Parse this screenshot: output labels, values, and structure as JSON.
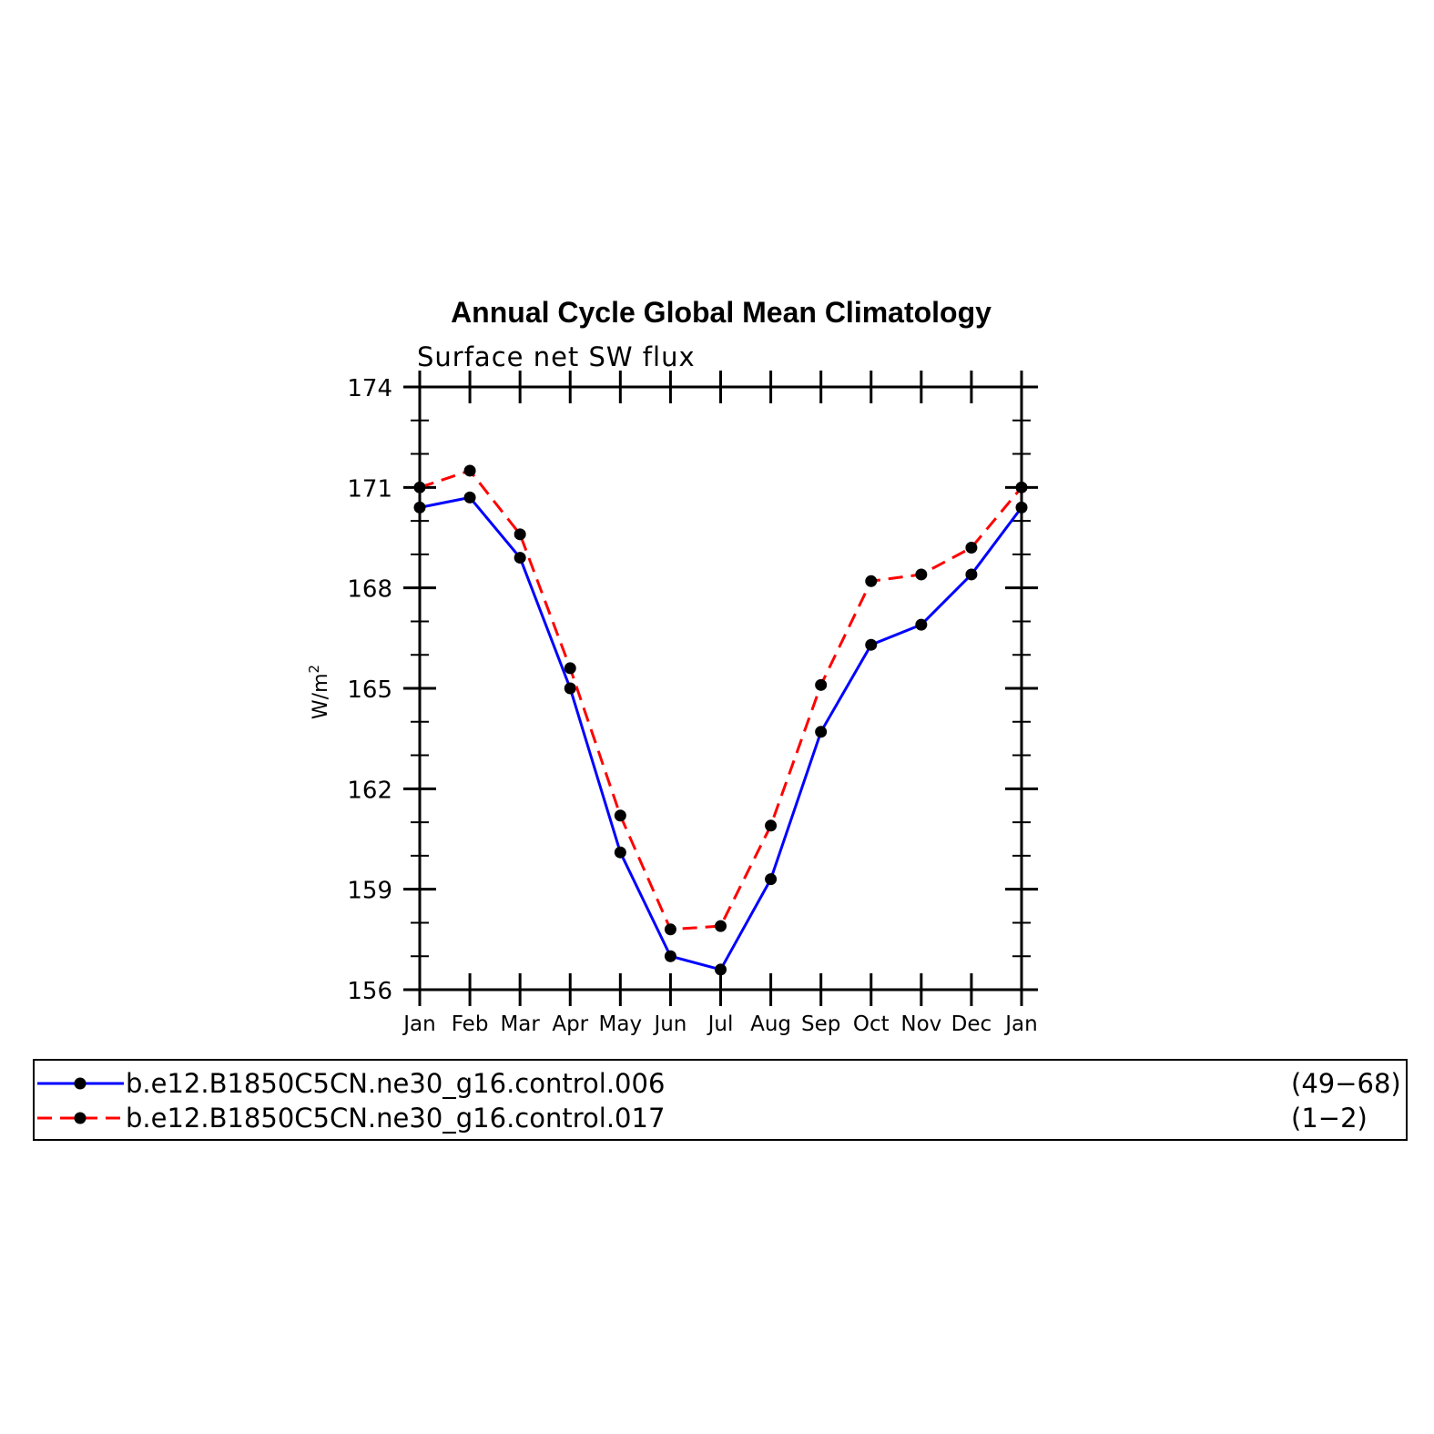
{
  "chart_data": {
    "type": "line",
    "title": "Annual Cycle Global Mean Climatology",
    "subtitle": "Surface net SW flux",
    "ylabel": "W/m",
    "ylabel_superscript": "2",
    "categories": [
      "Jan",
      "Feb",
      "Mar",
      "Apr",
      "May",
      "Jun",
      "Jul",
      "Aug",
      "Sep",
      "Oct",
      "Nov",
      "Dec",
      "Jan"
    ],
    "ylim": [
      156,
      174
    ],
    "yticks": [
      156,
      159,
      162,
      165,
      168,
      171,
      174
    ],
    "series": [
      {
        "name": "b.e12.B1850C5CN.ne30_g16.control.006",
        "years": "(49−68)",
        "color": "#0000ff",
        "dash": "solid",
        "marker": "filled-circle",
        "values": [
          170.4,
          170.7,
          168.9,
          165.0,
          160.1,
          157.0,
          156.6,
          159.3,
          163.7,
          166.3,
          166.9,
          168.4,
          170.4
        ]
      },
      {
        "name": "b.e12.B1850C5CN.ne30_g16.control.017",
        "years": "(1−2)",
        "color": "#ff0000",
        "dash": "dashed",
        "marker": "filled-circle",
        "values": [
          171.0,
          171.5,
          169.6,
          165.6,
          161.2,
          157.8,
          157.9,
          160.9,
          165.1,
          168.2,
          168.4,
          169.2,
          171.0
        ]
      }
    ],
    "grid": false,
    "legend_placement": "bottom"
  }
}
